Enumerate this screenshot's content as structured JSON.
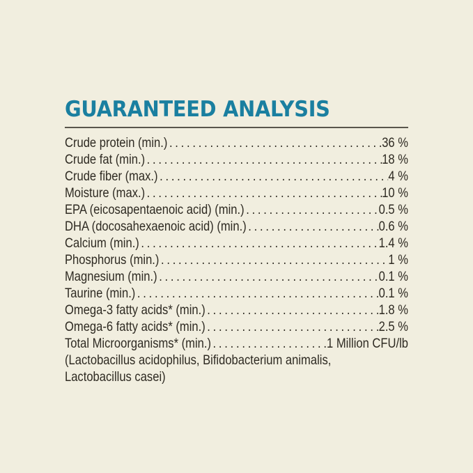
{
  "title": "GUARANTEED ANALYSIS",
  "colors": {
    "title": "#1a7fa0",
    "text": "#2e2a22",
    "background": "#f1eedf"
  },
  "rows": [
    {
      "label": "Crude protein (min.)",
      "value": "36 %"
    },
    {
      "label": "Crude fat (min.)",
      "value": "18 %"
    },
    {
      "label": "Crude fiber (max.)",
      "value": "4 %"
    },
    {
      "label": "Moisture (max.)",
      "value": "10 %"
    },
    {
      "label": "EPA (eicosapentaenoic acid) (min.)",
      "value": "0.5 %"
    },
    {
      "label": "DHA (docosahexaenoic acid) (min.)",
      "value": "0.6 %"
    },
    {
      "label": "Calcium (min.)",
      "value": "1.4 %"
    },
    {
      "label": "Phosphorus (min.)",
      "value": "1 %"
    },
    {
      "label": "Magnesium (min.)",
      "value": "0.1 %"
    },
    {
      "label": "Taurine (min.)",
      "value": "0.1 %"
    },
    {
      "label": "Omega-3 fatty acids* (min.)",
      "value": "1.8 %"
    },
    {
      "label": "Omega-6 fatty acids* (min.)",
      "value": "2.5 %"
    },
    {
      "label": "Total Microorganisms* (min.)",
      "value": "1 Million CFU/lb"
    }
  ],
  "note_lines": [
    "(Lactobacillus acidophilus, Bifidobacterium animalis,",
    "Lactobacillus casei)"
  ]
}
